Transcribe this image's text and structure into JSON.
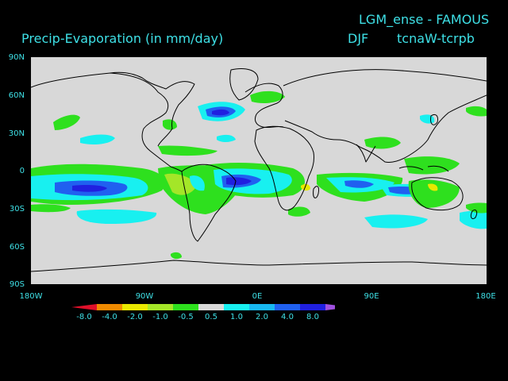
{
  "header": {
    "model": "LGM_ense - FAMOUS",
    "variable": "Precip-Evaporation (in mm/day)",
    "season": "DJF",
    "experiment": "tcnaW-tcrpb"
  },
  "axes": {
    "lat_labels": [
      "90N",
      "60N",
      "30N",
      "0",
      "30S",
      "60S",
      "90S"
    ],
    "lon_labels": [
      "180W",
      "90W",
      "0E",
      "90E",
      "180E"
    ]
  },
  "colorbar": {
    "labels": [
      "-8.0",
      "-4.0",
      "-2.0",
      "-1.0",
      "-0.5",
      "0.5",
      "1.0",
      "2.0",
      "4.0",
      "8.0"
    ],
    "colors": [
      "#e0102a",
      "#f08a00",
      "#e8e800",
      "#a4e628",
      "#2ee01e",
      "#d8d8d8",
      "#18f0f0",
      "#18b8f0",
      "#2060f0",
      "#2020e0",
      "#a050e0"
    ]
  },
  "map": {
    "background": "#d8d8d8",
    "coastline_color": "#000000"
  }
}
